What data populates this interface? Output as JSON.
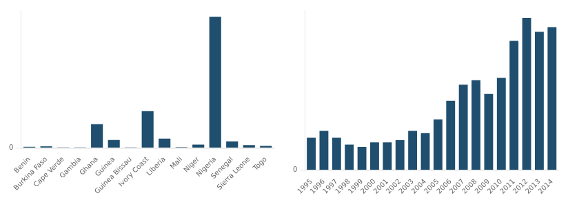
{
  "chart_data": [
    {
      "type": "bar",
      "categories": [
        "Benin",
        "Burkina Faso",
        "Cape Verde",
        "Gambia",
        "Ghana",
        "Guinea",
        "Guinea Bissau",
        "Ivory Coast",
        "Liberia",
        "Mali",
        "Niger",
        "Nigeria",
        "Senegal",
        "Sierra Leone",
        "Togo"
      ],
      "values": [
        0.8,
        1.2,
        0.05,
        0.05,
        18,
        6,
        0.1,
        28,
        7,
        0.5,
        2.5,
        100,
        5,
        2,
        1.5
      ],
      "color": "#1f4e6e",
      "ylim": [
        0,
        105
      ],
      "yticks": [
        0
      ],
      "grid": true
    },
    {
      "type": "bar",
      "categories": [
        "1995",
        "1996",
        "1997",
        "1998",
        "1999",
        "2000",
        "2001",
        "2002",
        "2003",
        "2004",
        "2005",
        "2006",
        "2007",
        "2008",
        "2009",
        "2010",
        "2011",
        "2012",
        "2013",
        "2014"
      ],
      "values": [
        14,
        17,
        14,
        11,
        10,
        12,
        12,
        13,
        17,
        16,
        22,
        30,
        37,
        39,
        33,
        40,
        56,
        66,
        60,
        62
      ],
      "color": "#1f4e6e",
      "ylim": [
        0,
        69.3
      ],
      "yticks": [
        0
      ],
      "grid": true
    }
  ]
}
